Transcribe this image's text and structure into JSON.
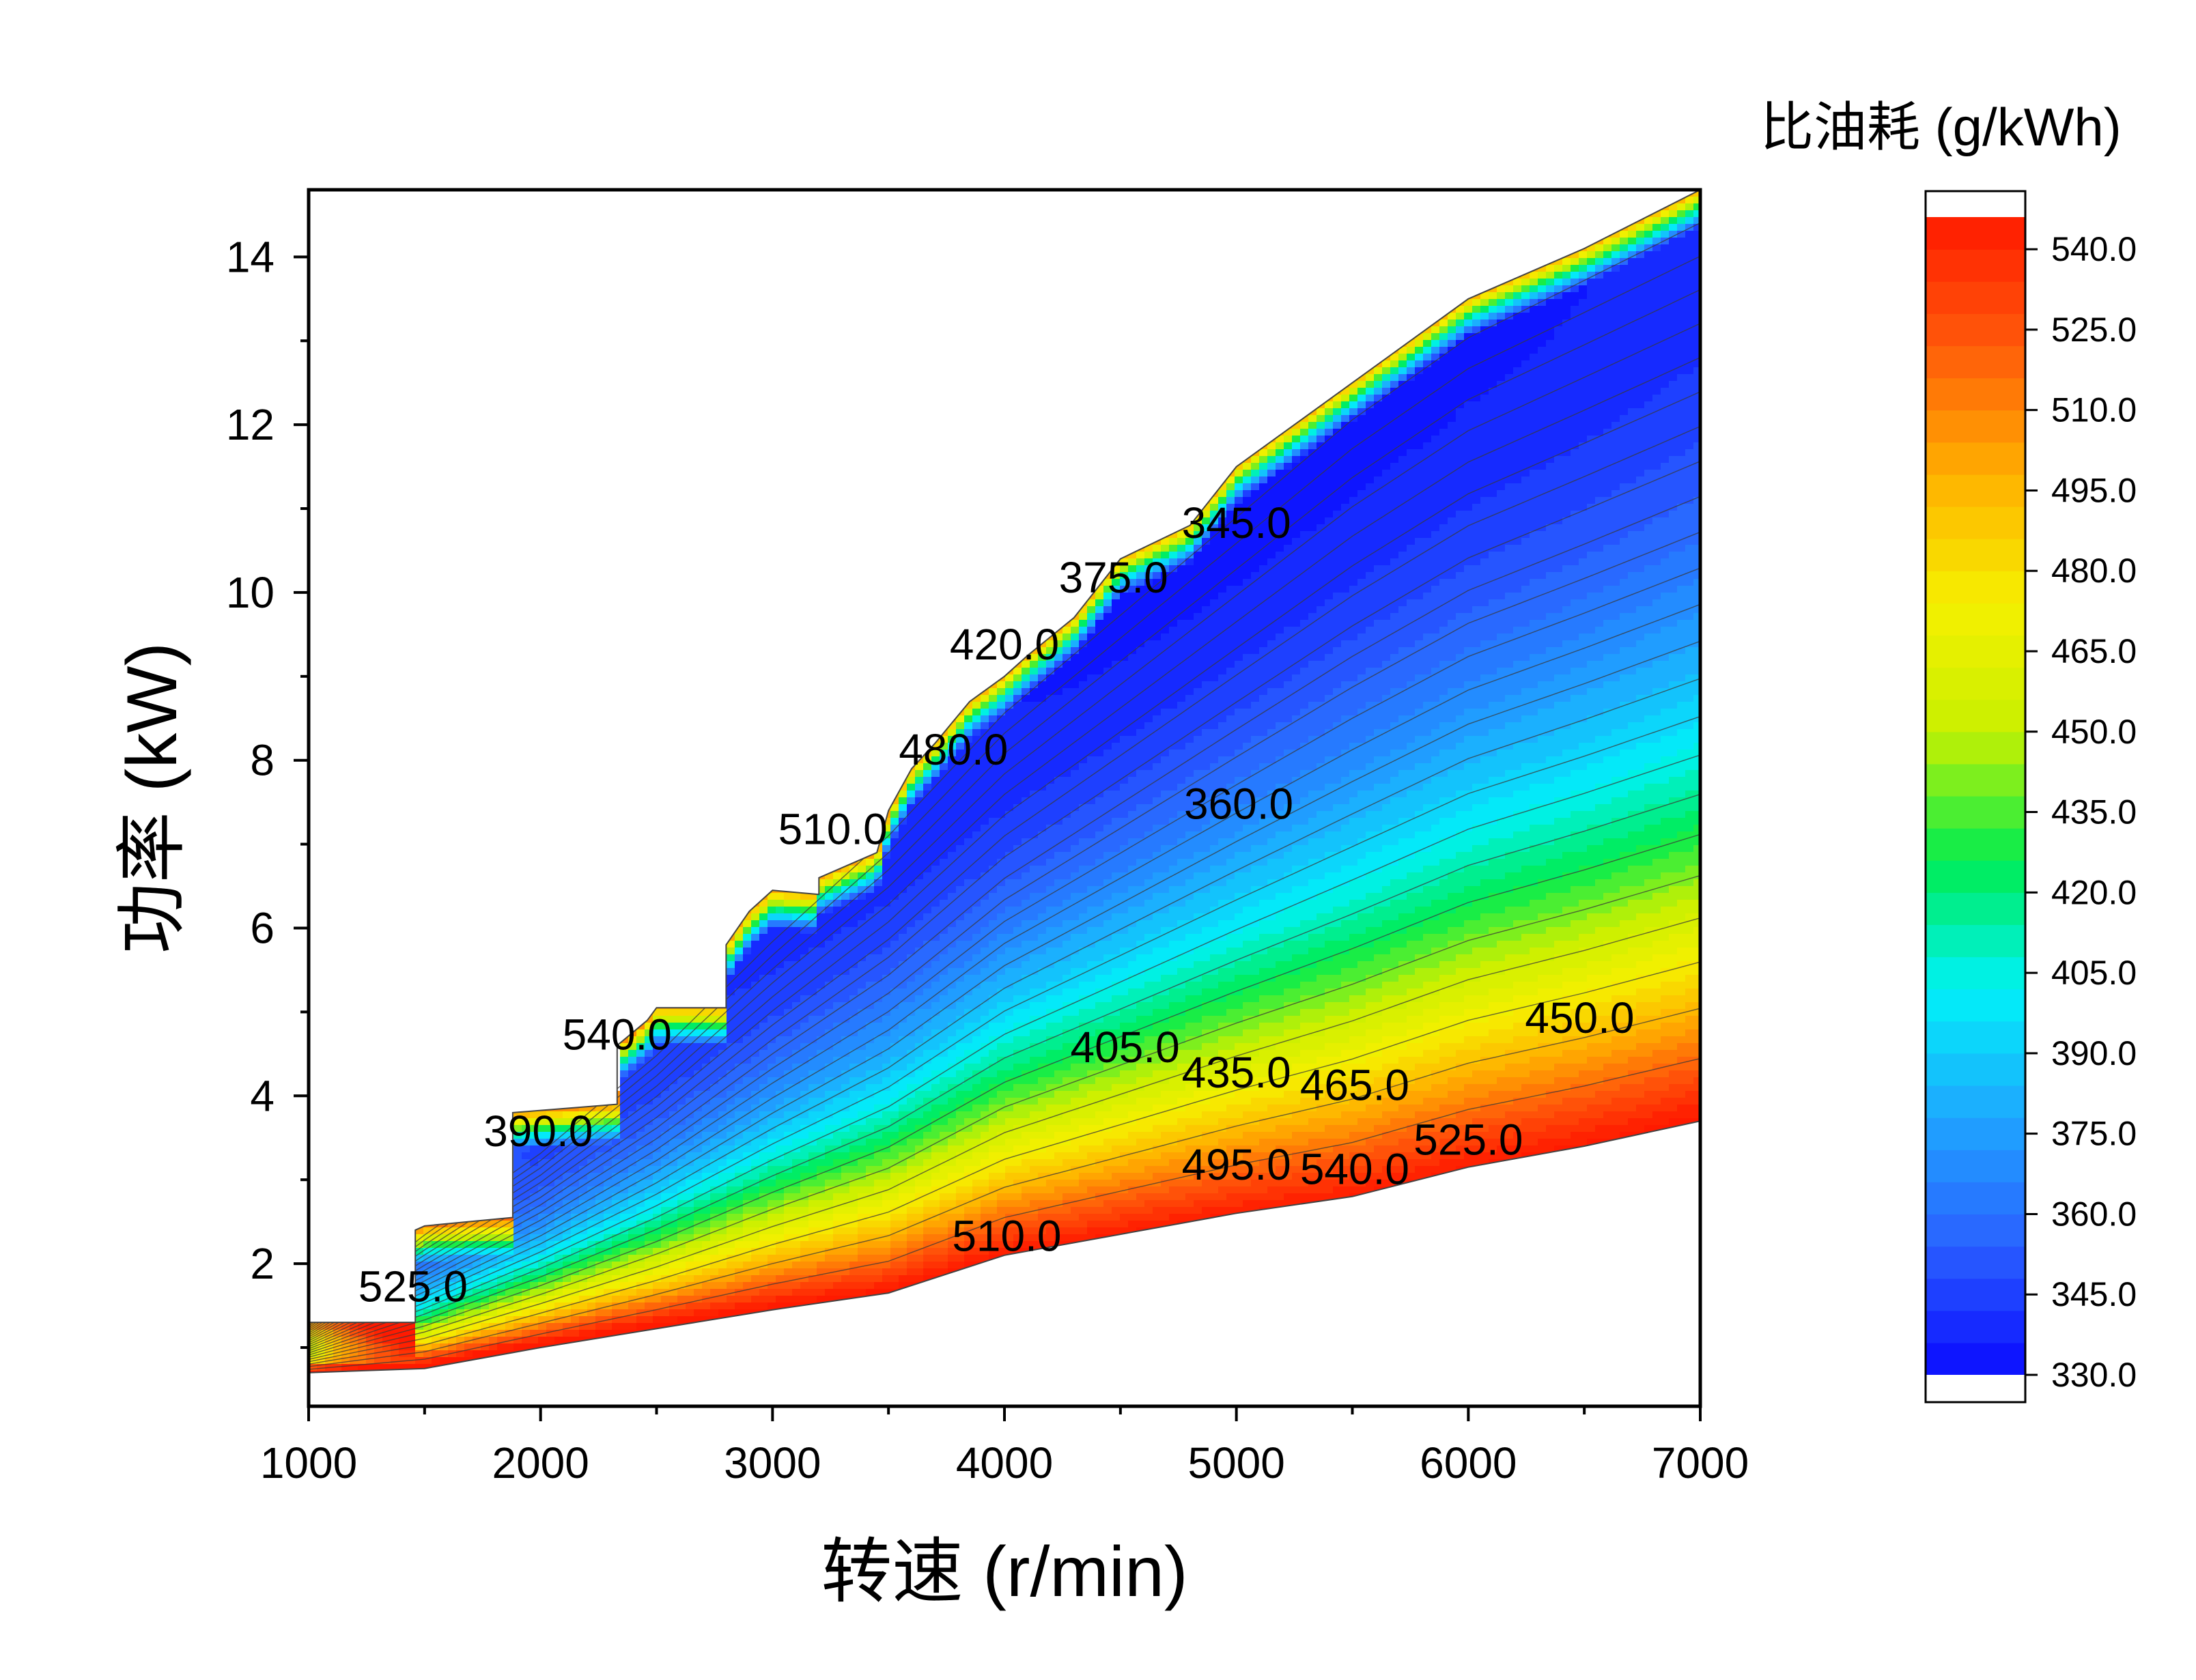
{
  "chart_data": {
    "type": "heatmap",
    "subtype": "filled contour map",
    "xlabel": "转速 (r/min)",
    "ylabel": "功率 (kW)",
    "xlim": [
      1000,
      7000
    ],
    "ylim": [
      0.3,
      14.8
    ],
    "x_ticks": [
      1000,
      2000,
      3000,
      4000,
      5000,
      6000,
      7000
    ],
    "y_ticks": [
      2,
      4,
      6,
      8,
      10,
      12,
      14
    ],
    "x_tick_labels": [
      "1000",
      "2000",
      "3000",
      "4000",
      "5000",
      "6000",
      "7000"
    ],
    "y_tick_labels": [
      "2",
      "4",
      "6",
      "8",
      "10",
      "12",
      "14"
    ],
    "grid": false,
    "colorbar": {
      "title": "比油耗 (g/kWh)",
      "range": [
        330,
        546
      ],
      "tick_values": [
        330,
        345,
        360,
        375,
        390,
        405,
        420,
        435,
        450,
        465,
        480,
        495,
        510,
        525,
        540
      ],
      "tick_labels": [
        "330.0",
        "345.0",
        "360.0",
        "375.0",
        "390.0",
        "405.0",
        "420.0",
        "435.0",
        "450.0",
        "465.0",
        "480.0",
        "495.0",
        "510.0",
        "525.0",
        "540.0"
      ],
      "position": "right",
      "colormap": [
        "#0a0aff",
        "#2a60ff",
        "#1fa6ff",
        "#00f2f8",
        "#00ec50",
        "#c8f000",
        "#f6f000",
        "#ffb000",
        "#ff5a0a",
        "#ff1a00"
      ]
    },
    "region": {
      "upper_boundary": [
        [
          1000,
          1.3
        ],
        [
          1460,
          1.3
        ],
        [
          1460,
          2.4
        ],
        [
          1500,
          2.45
        ],
        [
          1880,
          2.55
        ],
        [
          1880,
          3.8
        ],
        [
          2330,
          3.9
        ],
        [
          2330,
          4.6
        ],
        [
          2460,
          4.9
        ],
        [
          2500,
          5.05
        ],
        [
          2800,
          5.05
        ],
        [
          2800,
          5.8
        ],
        [
          2900,
          6.2
        ],
        [
          3000,
          6.45
        ],
        [
          3200,
          6.4
        ],
        [
          3200,
          6.6
        ],
        [
          3450,
          6.9
        ],
        [
          3500,
          7.4
        ],
        [
          3600,
          7.9
        ],
        [
          3700,
          8.2
        ],
        [
          3850,
          8.7
        ],
        [
          4000,
          9.0
        ],
        [
          4100,
          9.25
        ],
        [
          4300,
          9.7
        ],
        [
          4500,
          10.4
        ],
        [
          4800,
          10.8
        ],
        [
          5000,
          11.5
        ],
        [
          5500,
          12.5
        ],
        [
          6000,
          13.5
        ],
        [
          6500,
          14.1
        ],
        [
          7000,
          14.8
        ]
      ],
      "lower_boundary": [
        [
          1000,
          0.7
        ],
        [
          1500,
          0.75
        ],
        [
          2000,
          1.0
        ],
        [
          3000,
          1.45
        ],
        [
          3500,
          1.65
        ],
        [
          4000,
          2.1
        ],
        [
          4500,
          2.35
        ],
        [
          5000,
          2.6
        ],
        [
          5500,
          2.8
        ],
        [
          6000,
          3.15
        ],
        [
          6500,
          3.4
        ],
        [
          7000,
          3.7
        ]
      ]
    },
    "bsfc_model": {
      "minimum_point": [
        5300,
        9.9
      ],
      "minimum_value": 334
    },
    "contour_labels": [
      {
        "text": "345.0",
        "x": 5000,
        "y": 10.65
      },
      {
        "text": "375.0",
        "x": 4470,
        "y": 10.0
      },
      {
        "text": "420.0",
        "x": 4000,
        "y": 9.2
      },
      {
        "text": "480.0",
        "x": 3780,
        "y": 7.95
      },
      {
        "text": "510.0",
        "x": 3260,
        "y": 7.0
      },
      {
        "text": "360.0",
        "x": 5010,
        "y": 7.3
      },
      {
        "text": "540.0",
        "x": 2330,
        "y": 4.55
      },
      {
        "text": "390.0",
        "x": 1990,
        "y": 3.4
      },
      {
        "text": "525.0",
        "x": 1450,
        "y": 1.55
      },
      {
        "text": "405.0",
        "x": 4520,
        "y": 4.4
      },
      {
        "text": "435.0",
        "x": 5000,
        "y": 4.1
      },
      {
        "text": "465.0",
        "x": 5510,
        "y": 3.95
      },
      {
        "text": "450.0",
        "x": 6480,
        "y": 4.75
      },
      {
        "text": "525.0",
        "x": 6000,
        "y": 3.3
      },
      {
        "text": "495.0",
        "x": 5000,
        "y": 3.0
      },
      {
        "text": "540.0",
        "x": 5510,
        "y": 2.95
      },
      {
        "text": "510.0",
        "x": 4010,
        "y": 2.15
      }
    ]
  }
}
